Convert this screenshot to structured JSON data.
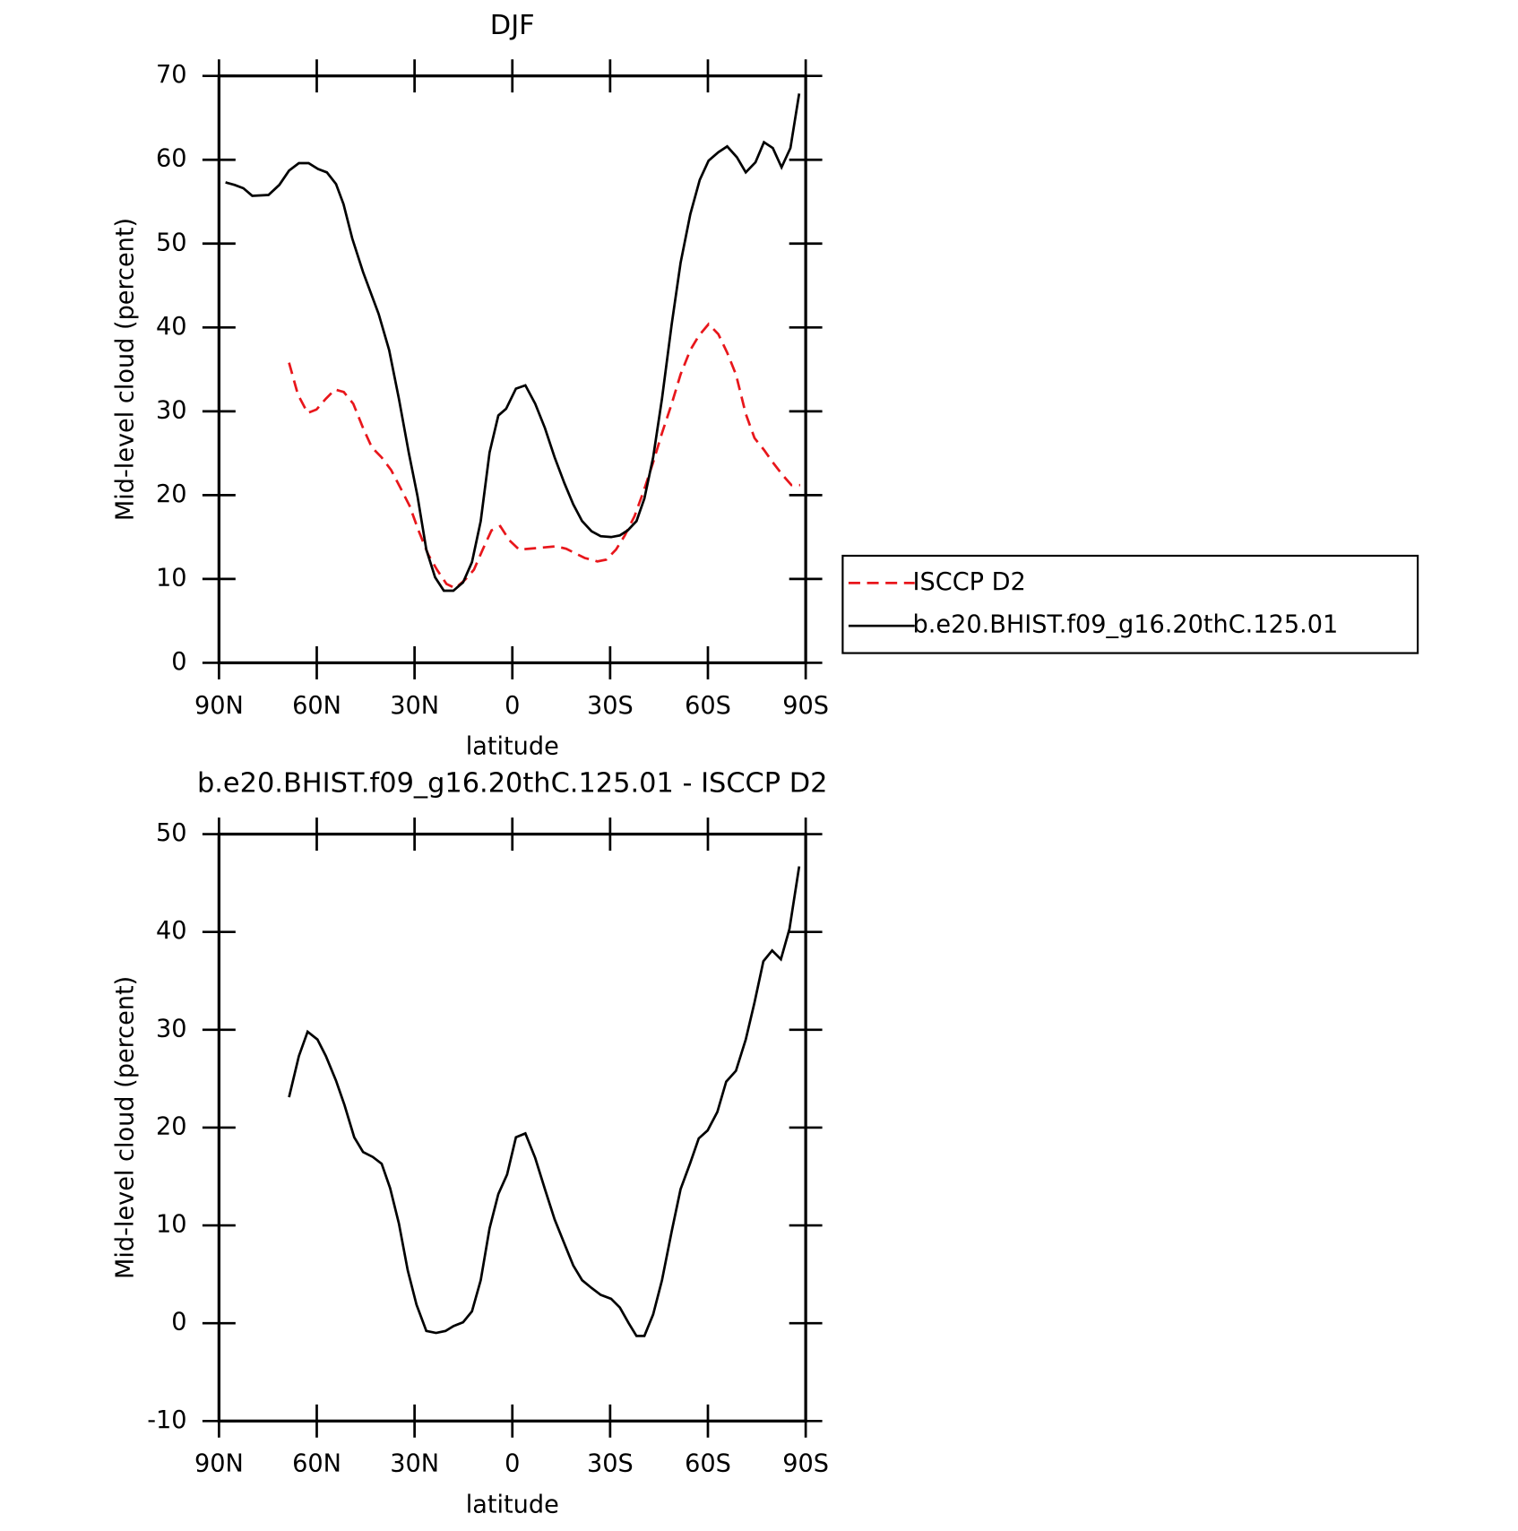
{
  "chart_data": [
    {
      "type": "line",
      "title": "DJF",
      "xlabel": "latitude",
      "ylabel": "Mid-level cloud (percent)",
      "xlim": [
        90,
        -90
      ],
      "xticks": [
        {
          "value": 90,
          "label": "90N"
        },
        {
          "value": 60,
          "label": "60N"
        },
        {
          "value": 30,
          "label": "30N"
        },
        0,
        {
          "value": -30,
          "label": "30S"
        },
        {
          "value": -60,
          "label": "60S"
        },
        {
          "value": -90,
          "label": "90S"
        }
      ],
      "ylim": [
        0,
        70
      ],
      "yticks": [
        0,
        10,
        20,
        30,
        40,
        50,
        60,
        70
      ],
      "legend": "right",
      "series": [
        {
          "name": "ISCCP D2",
          "color": "#e8161b",
          "dashed": true,
          "x": [
            68.5,
            65.8,
            62.8,
            60.1,
            57.2,
            54.4,
            51.7,
            48.8,
            45.8,
            43.1,
            40.1,
            37.2,
            34.5,
            31.5,
            28.8,
            25.8,
            23.1,
            20.2,
            17.5,
            14.5,
            11.8,
            9.1,
            6.4,
            3.7,
            0.9,
            -2.1,
            -7.8,
            -13.5,
            -16.5,
            -22.2,
            -26.1,
            -28.8,
            -31.8,
            -34.5,
            -37.5,
            -40.2,
            -43.2,
            -45.9,
            -48.9,
            -51.6,
            -54.6,
            -57.2,
            -60.2,
            -63.2,
            -65.9,
            -68.6,
            -71.6,
            -74.3,
            -77.2,
            -79.9,
            -82.9,
            -85.6,
            -88.3
          ],
          "values": [
            35.8,
            32.0,
            29.8,
            30.2,
            31.5,
            32.6,
            32.3,
            30.9,
            28.0,
            25.7,
            24.5,
            23.0,
            21.0,
            18.7,
            15.8,
            12.9,
            11.1,
            9.4,
            8.9,
            9.9,
            11.1,
            13.5,
            15.8,
            16.3,
            14.6,
            13.5,
            13.7,
            13.9,
            13.6,
            12.5,
            12.1,
            12.3,
            13.5,
            15.2,
            17.5,
            20.4,
            23.9,
            27.4,
            30.9,
            34.4,
            37.3,
            39.0,
            40.4,
            39.2,
            37.0,
            34.4,
            29.7,
            26.8,
            25.4,
            23.9,
            22.4,
            21.2,
            21.2
          ]
        },
        {
          "name": "b.e20.BHIST.f09_g16.20thC.125.01",
          "color": "#000000",
          "dashed": false,
          "x": [
            88.0,
            85.2,
            82.5,
            79.8,
            74.8,
            71.5,
            68.5,
            65.5,
            62.5,
            59.6,
            56.9,
            54.1,
            51.8,
            49.1,
            45.8,
            41.0,
            37.8,
            34.8,
            31.8,
            29.1,
            26.4,
            23.7,
            21.0,
            18.1,
            15.1,
            12.4,
            9.7,
            7.0,
            4.3,
            1.9,
            -1.1,
            -4.0,
            -7.0,
            -10.0,
            -13.0,
            -16.0,
            -18.7,
            -21.4,
            -24.3,
            -27.1,
            -30.3,
            -33.0,
            -35.4,
            -38.1,
            -40.5,
            -43.2,
            -45.9,
            -48.9,
            -51.6,
            -54.6,
            -57.5,
            -60.2,
            -63.2,
            -65.9,
            -68.9,
            -71.6,
            -74.6,
            -77.2,
            -79.9,
            -82.6,
            -85.3,
            -88.0
          ],
          "values": [
            57.3,
            57.0,
            56.6,
            55.7,
            55.8,
            57.0,
            58.7,
            59.6,
            59.6,
            58.9,
            58.5,
            57.1,
            54.7,
            50.6,
            46.6,
            41.6,
            37.3,
            31.5,
            25.1,
            19.9,
            13.5,
            10.2,
            8.6,
            8.6,
            9.6,
            12.0,
            16.9,
            25.1,
            29.5,
            30.3,
            32.7,
            33.1,
            30.9,
            28.0,
            24.5,
            21.4,
            18.9,
            16.9,
            15.7,
            15.1,
            15.0,
            15.2,
            15.8,
            16.9,
            19.6,
            24.5,
            31.5,
            40.4,
            47.7,
            53.5,
            57.6,
            59.9,
            60.9,
            61.6,
            60.3,
            58.5,
            59.7,
            62.1,
            61.4,
            59.1,
            61.4,
            67.9
          ]
        }
      ]
    },
    {
      "type": "line",
      "title": "b.e20.BHIST.f09_g16.20thC.125.01 - ISCCP D2",
      "xlabel": "latitude",
      "ylabel": "Mid-level cloud (percent)",
      "xlim": [
        90,
        -90
      ],
      "xticks": [
        {
          "value": 90,
          "label": "90N"
        },
        {
          "value": 60,
          "label": "60N"
        },
        {
          "value": 30,
          "label": "30N"
        },
        0,
        {
          "value": -30,
          "label": "30S"
        },
        {
          "value": -60,
          "label": "60S"
        },
        {
          "value": -90,
          "label": "90S"
        }
      ],
      "ylim": [
        -10,
        50
      ],
      "yticks": [
        -10,
        0,
        10,
        20,
        30,
        40,
        50
      ],
      "series": [
        {
          "color": "#000000",
          "dashed": false,
          "x": [
            68.5,
            65.5,
            62.8,
            59.8,
            57.2,
            54.1,
            51.5,
            48.5,
            45.8,
            42.8,
            40.1,
            37.5,
            34.8,
            32.1,
            29.4,
            26.4,
            23.4,
            20.5,
            18.1,
            15.1,
            12.4,
            9.7,
            7.0,
            4.3,
            1.6,
            -1.1,
            -4.0,
            -7.0,
            -10.0,
            -13.0,
            -16.0,
            -18.7,
            -21.4,
            -24.3,
            -27.1,
            -30.3,
            -33.0,
            -35.7,
            -38.1,
            -40.5,
            -43.2,
            -45.9,
            -48.9,
            -51.6,
            -54.6,
            -57.2,
            -59.9,
            -62.9,
            -65.6,
            -68.6,
            -71.6,
            -74.3,
            -77.0,
            -79.7,
            -82.4,
            -85.0,
            -88.0
          ],
          "values": [
            23.1,
            27.3,
            29.8,
            29.0,
            27.3,
            24.8,
            22.3,
            19.0,
            17.5,
            17.0,
            16.3,
            13.8,
            10.2,
            5.4,
            1.9,
            -0.8,
            -1.0,
            -0.8,
            -0.3,
            0.1,
            1.2,
            4.4,
            9.7,
            13.2,
            15.2,
            19.0,
            19.4,
            16.9,
            13.7,
            10.6,
            8.1,
            5.9,
            4.4,
            3.6,
            2.9,
            2.5,
            1.6,
            0.0,
            -1.3,
            -1.3,
            0.9,
            4.4,
            9.4,
            13.7,
            16.4,
            18.9,
            19.7,
            21.6,
            24.7,
            25.8,
            29.0,
            32.8,
            37.0,
            38.1,
            37.2,
            40.3,
            46.7
          ]
        }
      ]
    }
  ]
}
